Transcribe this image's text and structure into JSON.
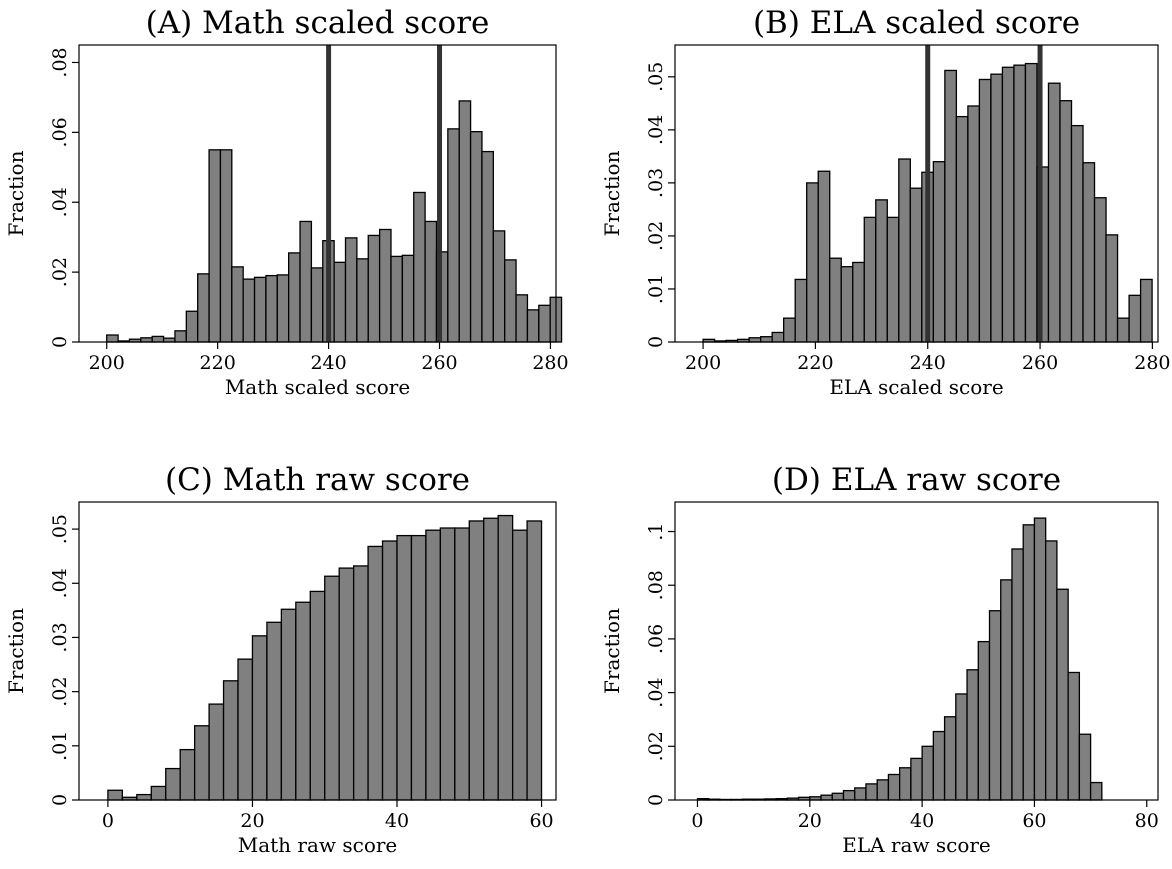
{
  "chart_data": [
    {
      "type": "bar",
      "title": "(A) Math scaled score",
      "xlabel": "Math scaled score",
      "ylabel": "Fraction",
      "xlim": [
        195,
        281
      ],
      "ylim": [
        0,
        0.085
      ],
      "xticks": [
        200,
        220,
        240,
        260,
        280
      ],
      "xtick_labels": [
        "200",
        "220",
        "240",
        "260",
        "280"
      ],
      "yticks": [
        0,
        0.02,
        0.04,
        0.06,
        0.08
      ],
      "ytick_labels": [
        "0",
        ".02",
        ".04",
        ".06",
        ".08"
      ],
      "bin_start": 200,
      "bin_width": 2.05,
      "values": [
        0.002,
        0.0003,
        0.0008,
        0.0012,
        0.0016,
        0.0011,
        0.0032,
        0.0088,
        0.0195,
        0.055,
        0.055,
        0.0215,
        0.018,
        0.0185,
        0.019,
        0.0192,
        0.0255,
        0.0345,
        0.0212,
        0.029,
        0.0228,
        0.0298,
        0.0238,
        0.0305,
        0.0322,
        0.0245,
        0.0248,
        0.0428,
        0.0345,
        0.0258,
        0.061,
        0.069,
        0.0602,
        0.0545,
        0.0318,
        0.0235,
        0.0135,
        0.0092,
        0.0105,
        0.0128
      ],
      "reference_lines": [
        240,
        260
      ],
      "grid": false,
      "legend": "none"
    },
    {
      "type": "bar",
      "title": "(B) ELA scaled score",
      "xlabel": "ELA scaled score",
      "ylabel": "Fraction",
      "xlim": [
        195,
        281
      ],
      "ylim": [
        0,
        0.056
      ],
      "xticks": [
        200,
        220,
        240,
        260,
        280
      ],
      "xtick_labels": [
        "200",
        "220",
        "240",
        "260",
        "280"
      ],
      "yticks": [
        0,
        0.01,
        0.02,
        0.03,
        0.04,
        0.05
      ],
      "ytick_labels": [
        "0",
        ".01",
        ".02",
        ".03",
        ".04",
        ".05"
      ],
      "bin_start": 200,
      "bin_width": 2.05,
      "values": [
        0.0005,
        0.0002,
        0.0003,
        0.0005,
        0.0008,
        0.001,
        0.0018,
        0.0045,
        0.0118,
        0.03,
        0.0322,
        0.0158,
        0.0142,
        0.015,
        0.0235,
        0.0268,
        0.0235,
        0.0345,
        0.029,
        0.032,
        0.034,
        0.0512,
        0.0425,
        0.0445,
        0.0495,
        0.0505,
        0.0518,
        0.0522,
        0.0525,
        0.033,
        0.0488,
        0.0455,
        0.0408,
        0.0338,
        0.0272,
        0.0202,
        0.0045,
        0.0088,
        0.0118
      ],
      "reference_lines": [
        240,
        260
      ],
      "grid": false,
      "legend": "none"
    },
    {
      "type": "bar",
      "title": "(C) Math raw score",
      "xlabel": "Math raw score",
      "ylabel": "Fraction",
      "xlim": [
        -4,
        62
      ],
      "ylim": [
        0,
        0.055
      ],
      "xticks": [
        0,
        20,
        40,
        60
      ],
      "xtick_labels": [
        "0",
        "20",
        "40",
        "60"
      ],
      "yticks": [
        0,
        0.01,
        0.02,
        0.03,
        0.04,
        0.05
      ],
      "ytick_labels": [
        "0",
        ".01",
        ".02",
        ".03",
        ".04",
        ".05"
      ],
      "bin_start": 0,
      "bin_width": 2,
      "values": [
        0.0018,
        0.0005,
        0.001,
        0.0025,
        0.0058,
        0.0093,
        0.0137,
        0.0177,
        0.022,
        0.026,
        0.0303,
        0.0328,
        0.0352,
        0.0365,
        0.0385,
        0.0413,
        0.0428,
        0.0432,
        0.0468,
        0.0478,
        0.0488,
        0.0488,
        0.0498,
        0.0502,
        0.0502,
        0.0515,
        0.052,
        0.0525,
        0.0498,
        0.0515
      ],
      "grid": false,
      "legend": "none"
    },
    {
      "type": "bar",
      "title": "(D) ELA raw score",
      "xlabel": "ELA raw score",
      "ylabel": "Fraction",
      "xlim": [
        -4,
        82
      ],
      "ylim": [
        0,
        0.111
      ],
      "xticks": [
        0,
        20,
        40,
        60,
        80
      ],
      "xtick_labels": [
        "0",
        "20",
        "40",
        "60",
        "80"
      ],
      "yticks": [
        0,
        0.02,
        0.04,
        0.06,
        0.08,
        0.1
      ],
      "ytick_labels": [
        "0",
        ".02",
        ".04",
        ".06",
        ".08",
        ".1"
      ],
      "bin_start": 0,
      "bin_width": 2,
      "values": [
        0.0005,
        0.0003,
        0.0002,
        0.0002,
        0.0003,
        0.0003,
        0.0004,
        0.0005,
        0.0007,
        0.001,
        0.0012,
        0.0018,
        0.0025,
        0.0035,
        0.0045,
        0.006,
        0.0075,
        0.0095,
        0.012,
        0.0155,
        0.02,
        0.0255,
        0.031,
        0.0395,
        0.0485,
        0.059,
        0.0705,
        0.082,
        0.0935,
        0.1025,
        0.105,
        0.0965,
        0.0785,
        0.0475,
        0.0245,
        0.0065
      ],
      "grid": false,
      "legend": "none"
    }
  ]
}
